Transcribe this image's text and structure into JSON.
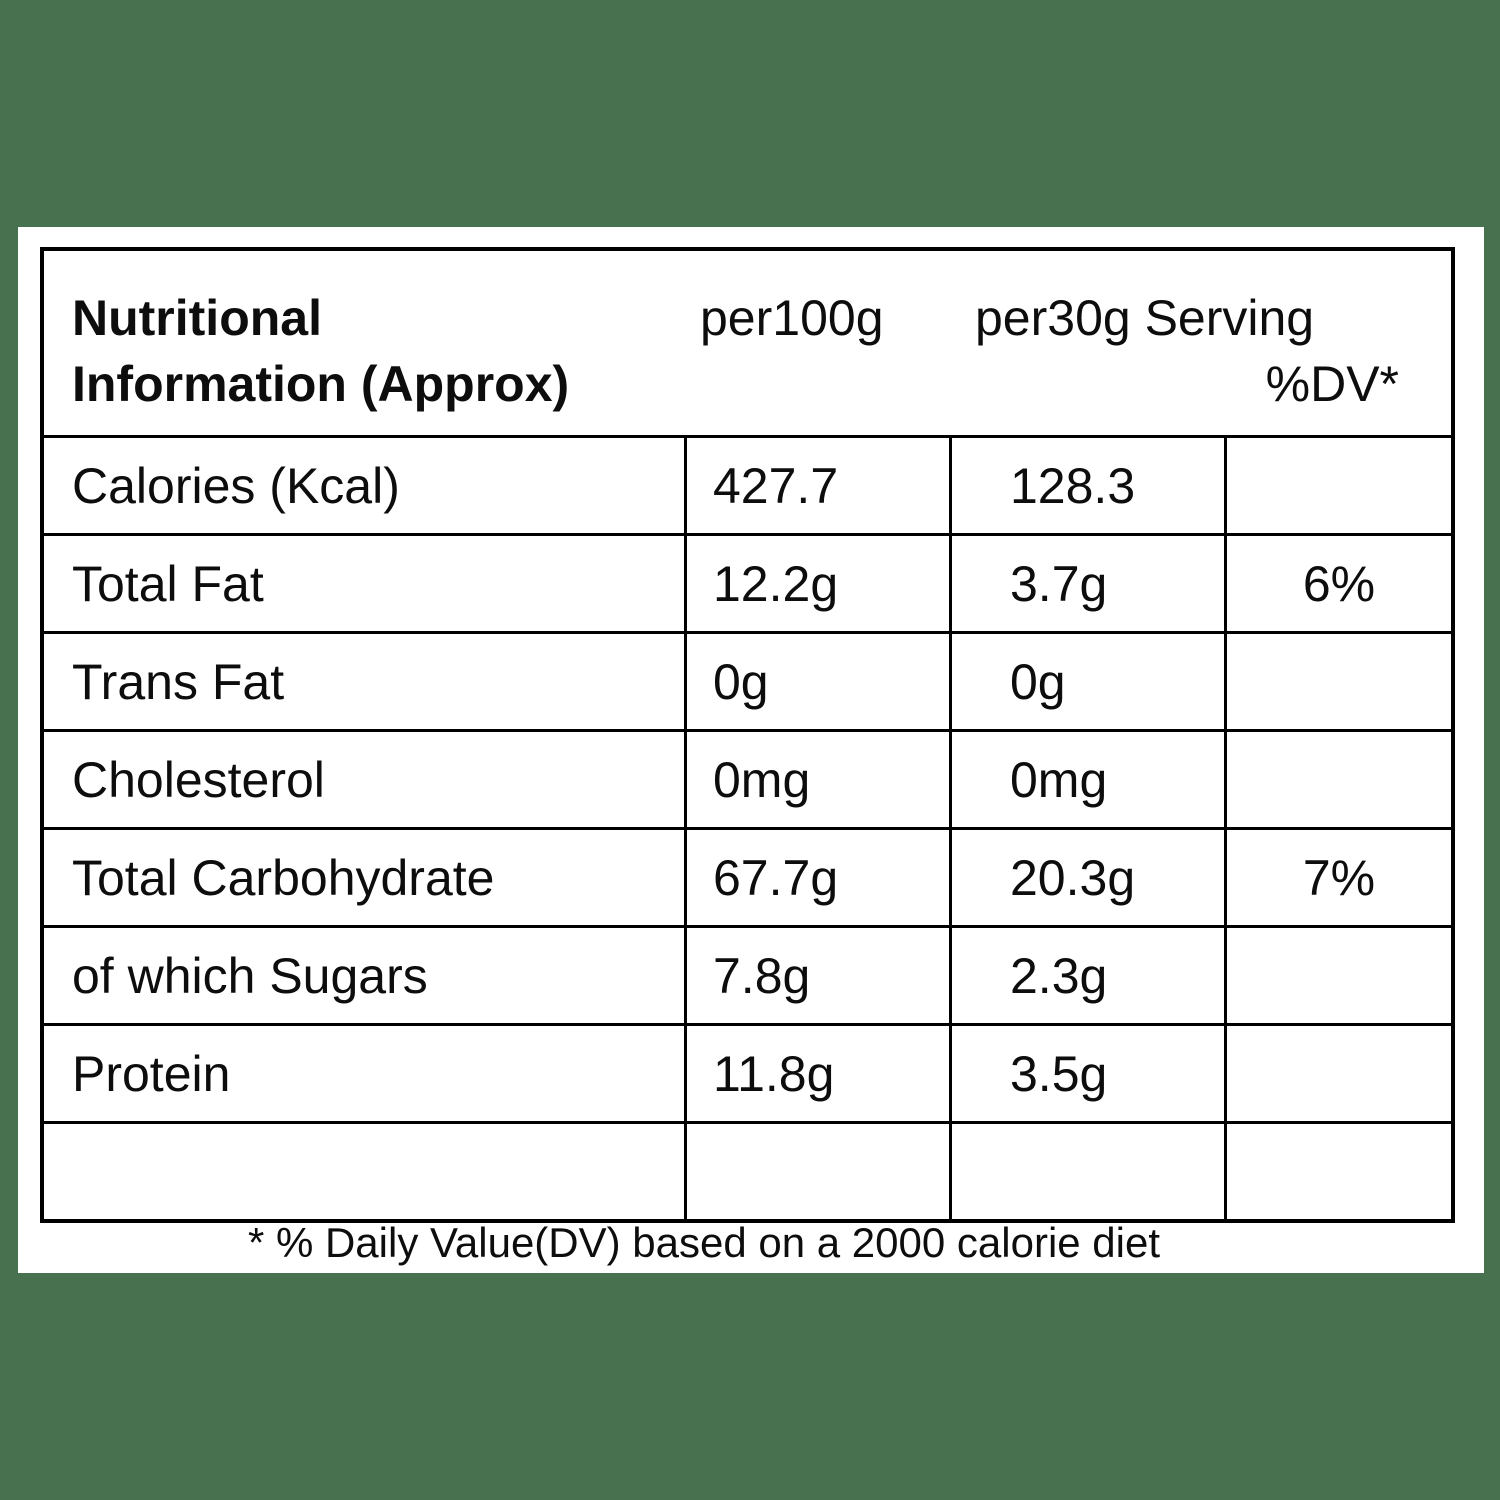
{
  "background_color": "#48714F",
  "card_color": "#ffffff",
  "border_color": "#000000",
  "table": {
    "title_line1": "Nutritional",
    "title_line2": "Information (Approx)",
    "col_headers": {
      "per100g": "per100g",
      "per30g_serving": "per30g Serving",
      "dv": "%DV*"
    },
    "rows": [
      {
        "label": "Calories (Kcal)",
        "per100g": "427.7",
        "per30g": "128.3",
        "dv": ""
      },
      {
        "label": "Total Fat",
        "per100g": "12.2g",
        "per30g": "3.7g",
        "dv": "6%"
      },
      {
        "label": "Trans Fat",
        "per100g": "0g",
        "per30g": "0g",
        "dv": ""
      },
      {
        "label": "Cholesterol",
        "per100g": "0mg",
        "per30g": "0mg",
        "dv": ""
      },
      {
        "label": "Total Carbohydrate",
        "per100g": "67.7g",
        "per30g": "20.3g",
        "dv": "7%"
      },
      {
        "label": "of which Sugars",
        "per100g": "7.8g",
        "per30g": "2.3g",
        "dv": ""
      },
      {
        "label": "Protein",
        "per100g": "11.8g",
        "per30g": "3.5g",
        "dv": ""
      },
      {
        "label": "",
        "per100g": "",
        "per30g": "",
        "dv": ""
      }
    ],
    "footnote": "* % Daily Value(DV) based on a 2000 calorie diet"
  }
}
